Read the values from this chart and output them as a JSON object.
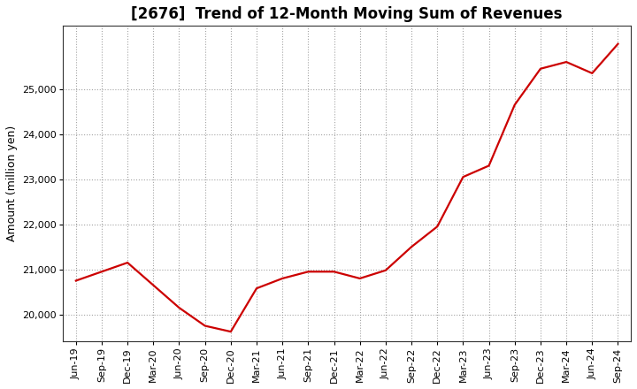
{
  "title": "[2676]  Trend of 12-Month Moving Sum of Revenues",
  "ylabel": "Amount (million yen)",
  "line_color": "#cc0000",
  "background_color": "#ffffff",
  "plot_bg_color": "#ffffff",
  "grid_color": "#999999",
  "title_fontsize": 12,
  "label_fontsize": 9,
  "tick_fontsize": 8,
  "x_labels": [
    "Jun-19",
    "Sep-19",
    "Dec-19",
    "Mar-20",
    "Jun-20",
    "Sep-20",
    "Dec-20",
    "Mar-21",
    "Jun-21",
    "Sep-21",
    "Dec-21",
    "Mar-22",
    "Jun-22",
    "Sep-22",
    "Dec-22",
    "Mar-23",
    "Jun-23",
    "Sep-23",
    "Dec-23",
    "Mar-24",
    "Jun-24",
    "Sep-24"
  ],
  "y_values": [
    20750,
    20950,
    21150,
    20650,
    20150,
    19750,
    19620,
    20580,
    20800,
    20950,
    20950,
    20800,
    20980,
    21500,
    21950,
    23050,
    23300,
    24650,
    25450,
    25600,
    25350,
    26000
  ],
  "ylim": [
    19400,
    26400
  ],
  "yticks": [
    20000,
    21000,
    22000,
    23000,
    24000,
    25000
  ],
  "line_width": 1.6
}
